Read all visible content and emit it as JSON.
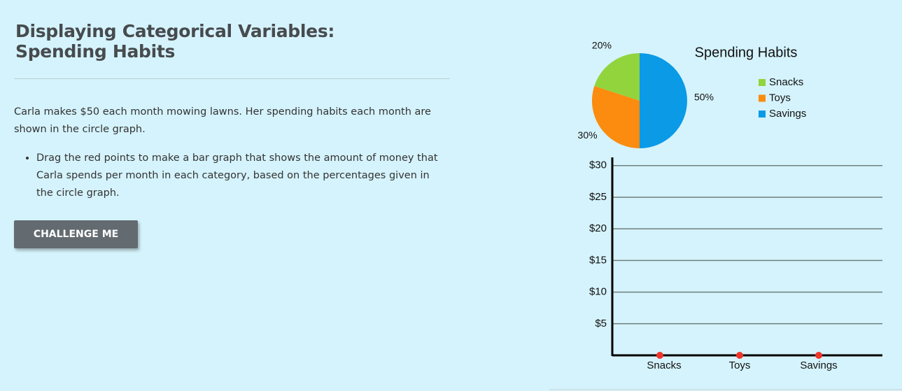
{
  "header": {
    "title": "Displaying Categorical Variables: Spending Habits"
  },
  "intro": "Carla makes $50 each month mowing lawns. Her spending habits each month are shown in the circle graph.",
  "instructions": [
    "Drag the red points to make a bar graph that shows the amount of money that Carla spends per month in each category, based on the percentages given in the circle graph."
  ],
  "button": "CHALLENGE ME",
  "chart_data": [
    {
      "type": "pie",
      "title": "Spending Habits",
      "categories": [
        "Snacks",
        "Toys",
        "Savings"
      ],
      "values": [
        20,
        30,
        50
      ],
      "value_labels": [
        "20%",
        "30%",
        "50%"
      ],
      "colors": [
        "#92d43c",
        "#fb8c0f",
        "#0a9ae6"
      ]
    },
    {
      "type": "bar",
      "categories": [
        "Snacks",
        "Toys",
        "Savings"
      ],
      "values": [
        0,
        0,
        0
      ],
      "colors": [
        "#92d43c",
        "#fb8c0f",
        "#0a9ae6"
      ],
      "point_color": "#f0352a",
      "ylim": [
        0,
        31.3
      ],
      "yticks": [
        {
          "value": 5,
          "label": "$5"
        },
        {
          "value": 10,
          "label": "$10"
        },
        {
          "value": 15,
          "label": "$15"
        },
        {
          "value": 20,
          "label": "$20"
        },
        {
          "value": 25,
          "label": "$25"
        },
        {
          "value": 30,
          "label": "$30"
        }
      ],
      "grid": true
    }
  ]
}
